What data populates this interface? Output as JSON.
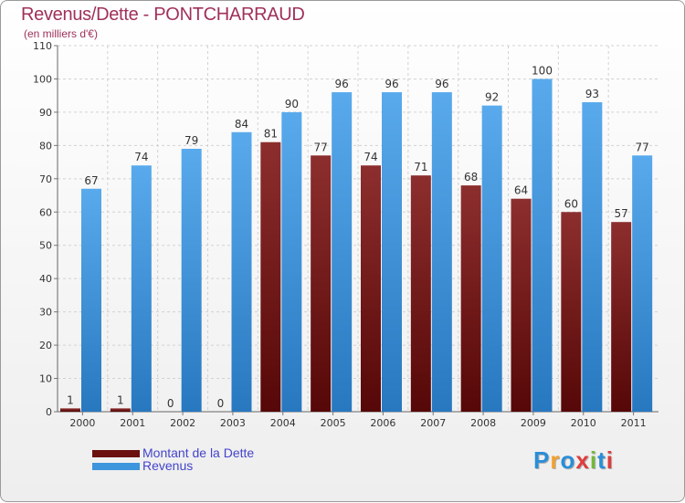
{
  "header": {
    "title": "Revenus/Dette - PONTCHARRAUD",
    "subtitle": "(en milliers d'€)"
  },
  "chart_data": {
    "type": "bar",
    "title": "Revenus/Dette - PONTCHARRAUD",
    "ylabel": "(en milliers d'€)",
    "xlabel": "",
    "ylim": [
      0,
      110
    ],
    "yticks": [
      0,
      10,
      20,
      30,
      40,
      50,
      60,
      70,
      80,
      90,
      100,
      110
    ],
    "grid": true,
    "legend_position": "bottom-left",
    "categories": [
      "2000",
      "2001",
      "2002",
      "2003",
      "2004",
      "2005",
      "2006",
      "2007",
      "2008",
      "2009",
      "2010",
      "2011"
    ],
    "series": [
      {
        "name": "Montant de la Dette",
        "color": "#7a1c1c",
        "values": [
          1,
          1,
          0,
          0,
          81,
          77,
          74,
          71,
          68,
          64,
          60,
          57
        ]
      },
      {
        "name": "Revenus",
        "color": "#3d95dd",
        "values": [
          67,
          74,
          79,
          84,
          90,
          96,
          96,
          96,
          92,
          100,
          93,
          77
        ]
      }
    ]
  },
  "legend": {
    "items": [
      {
        "label": "Montant de la Dette",
        "color": "#6b0f0f"
      },
      {
        "label": "Revenus",
        "color": "#3d95dd"
      }
    ]
  },
  "brand": {
    "letters": [
      "P",
      "r",
      "o",
      "x",
      "i",
      "t",
      "i"
    ],
    "colors": [
      "#2a8ed8",
      "#f2a12c",
      "#2a8ed8",
      "#e03c3c",
      "#73b83a",
      "#2a8ed8",
      "#e03c3c"
    ]
  }
}
